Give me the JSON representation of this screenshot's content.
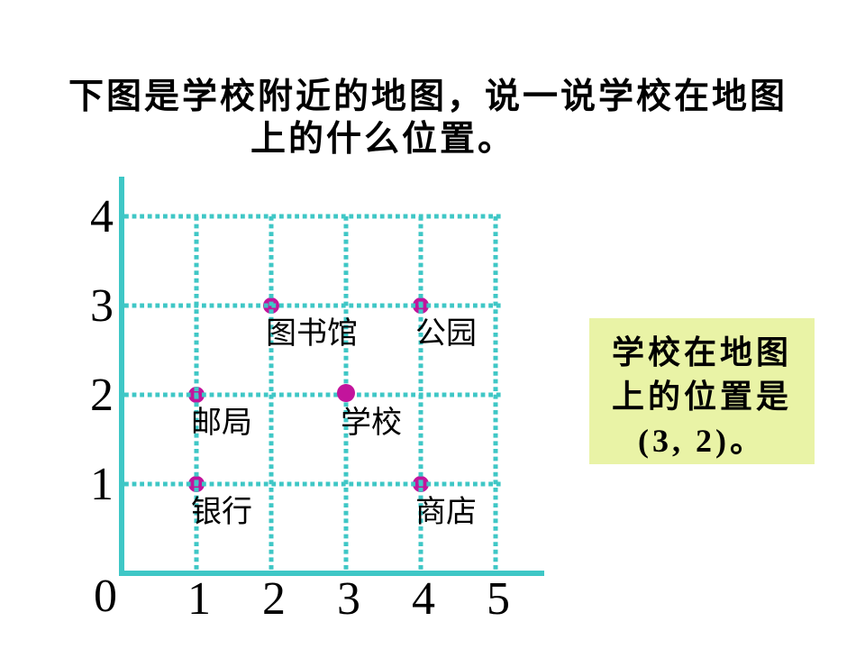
{
  "slide": {
    "title_line1": "下图是学校附近的地图，说一说学校在地图",
    "title_line2": "上的什么位置。",
    "title_color": "#000000",
    "background_color": "#ffffff"
  },
  "answer_box": {
    "line1": "学校在地图",
    "line2": "上的位置是",
    "line3": "(3, 2)。",
    "background_color": "#e9f3a6",
    "text_color": "#000000"
  },
  "chart_data": {
    "type": "scatter",
    "title": "",
    "xlabel": "",
    "ylabel": "",
    "x_ticks": [
      "0",
      "1",
      "2",
      "3",
      "4",
      "5"
    ],
    "y_ticks": [
      "0",
      "1",
      "2",
      "3",
      "4"
    ],
    "xlim": [
      0,
      5.6
    ],
    "ylim": [
      0,
      4.4
    ],
    "grid": "dashed",
    "legend_position": "none",
    "points": [
      {
        "label": "图书馆",
        "x": 2,
        "y": 3,
        "on_top": false
      },
      {
        "label": "公园",
        "x": 4,
        "y": 3,
        "on_top": false
      },
      {
        "label": "邮局",
        "x": 1,
        "y": 2,
        "on_top": false
      },
      {
        "label": "学校",
        "x": 3,
        "y": 2,
        "on_top": true
      },
      {
        "label": "银行",
        "x": 1,
        "y": 1,
        "on_top": false
      },
      {
        "label": "商店",
        "x": 4,
        "y": 1,
        "on_top": false
      }
    ],
    "colors": {
      "axis": "#3fc7c6",
      "grid": "#3fc7c6",
      "point": "#c3149c",
      "tick_text": "#000000",
      "label_text": "#000000"
    }
  }
}
